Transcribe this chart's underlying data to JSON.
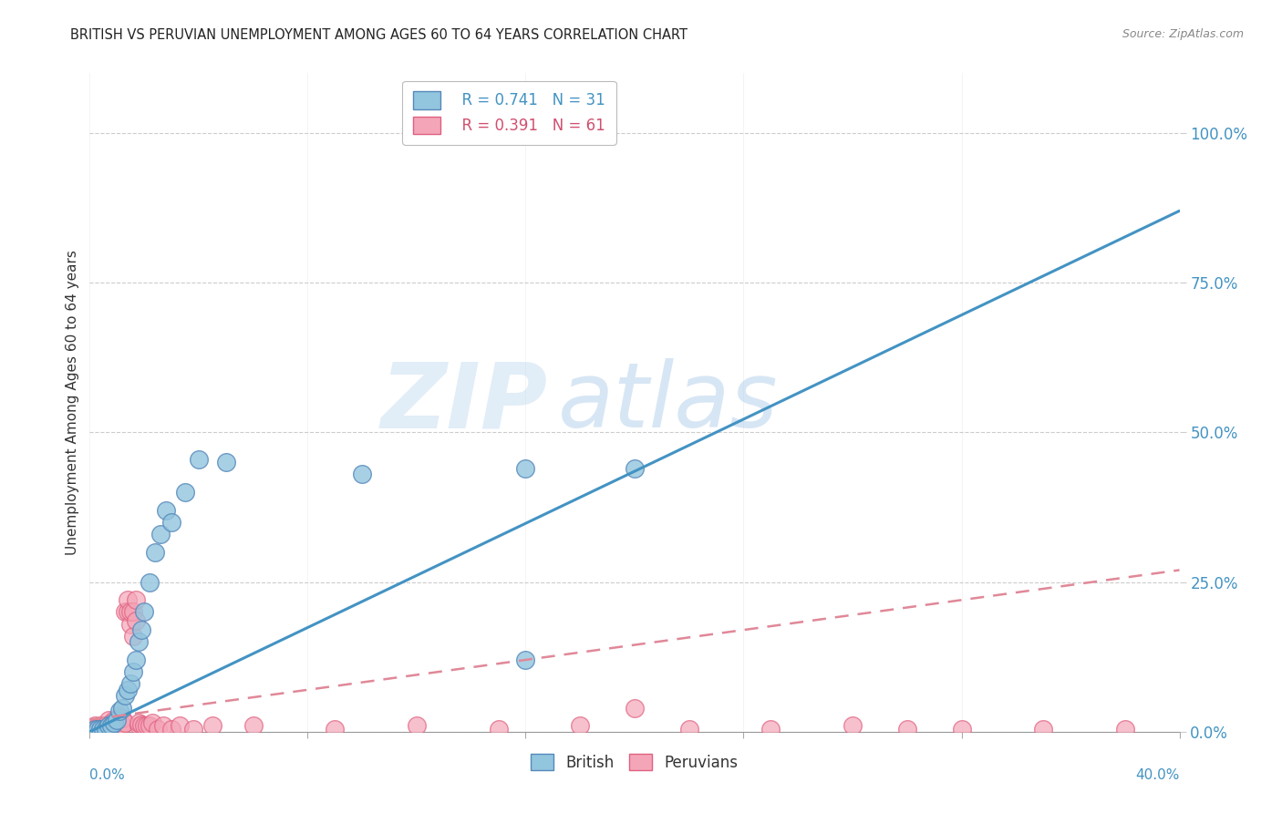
{
  "title": "BRITISH VS PERUVIAN UNEMPLOYMENT AMONG AGES 60 TO 64 YEARS CORRELATION CHART",
  "source": "Source: ZipAtlas.com",
  "ylabel": "Unemployment Among Ages 60 to 64 years",
  "xmin": 0.0,
  "xmax": 0.4,
  "ymin": 0.0,
  "ymax": 1.1,
  "right_yticks": [
    0.0,
    0.25,
    0.5,
    0.75,
    1.0
  ],
  "right_yticklabels": [
    "0.0%",
    "25.0%",
    "50.0%",
    "75.0%",
    "100.0%"
  ],
  "watermark_zip": "ZIP",
  "watermark_atlas": "atlas",
  "legend_blue_r": "R = 0.741",
  "legend_blue_n": "N = 31",
  "legend_pink_r": "R = 0.391",
  "legend_pink_n": "N = 61",
  "british_color": "#92c5de",
  "peruvian_color": "#f4a6b8",
  "blue_line_color": "#4393c3",
  "pink_line_color": "#d6604d",
  "blue_trend_x0": 0.0,
  "blue_trend_y0": 0.0,
  "blue_trend_x1": 0.4,
  "blue_trend_y1": 0.87,
  "pink_trend_x0": 0.0,
  "pink_trend_y0": 0.02,
  "pink_trend_x1": 0.4,
  "pink_trend_y1": 0.27,
  "british_x": [
    0.002,
    0.003,
    0.004,
    0.005,
    0.006,
    0.007,
    0.008,
    0.009,
    0.01,
    0.011,
    0.012,
    0.013,
    0.014,
    0.015,
    0.016,
    0.017,
    0.018,
    0.019,
    0.02,
    0.022,
    0.024,
    0.026,
    0.028,
    0.03,
    0.035,
    0.04,
    0.05,
    0.1,
    0.16,
    0.2,
    0.16
  ],
  "british_y": [
    0.005,
    0.005,
    0.005,
    0.005,
    0.005,
    0.01,
    0.01,
    0.015,
    0.02,
    0.035,
    0.04,
    0.06,
    0.07,
    0.08,
    0.1,
    0.12,
    0.15,
    0.17,
    0.2,
    0.25,
    0.3,
    0.33,
    0.37,
    0.35,
    0.4,
    0.455,
    0.45,
    0.43,
    0.44,
    0.44,
    0.12
  ],
  "peruvian_x": [
    0.001,
    0.002,
    0.002,
    0.003,
    0.003,
    0.004,
    0.004,
    0.005,
    0.005,
    0.005,
    0.006,
    0.006,
    0.007,
    0.007,
    0.007,
    0.008,
    0.008,
    0.009,
    0.009,
    0.01,
    0.01,
    0.011,
    0.011,
    0.012,
    0.012,
    0.013,
    0.013,
    0.014,
    0.014,
    0.015,
    0.015,
    0.016,
    0.016,
    0.017,
    0.017,
    0.018,
    0.018,
    0.019,
    0.02,
    0.021,
    0.022,
    0.023,
    0.025,
    0.027,
    0.03,
    0.033,
    0.038,
    0.045,
    0.06,
    0.09,
    0.12,
    0.15,
    0.18,
    0.2,
    0.22,
    0.25,
    0.28,
    0.3,
    0.32,
    0.35,
    0.38
  ],
  "peruvian_y": [
    0.005,
    0.005,
    0.01,
    0.005,
    0.008,
    0.005,
    0.01,
    0.005,
    0.008,
    0.01,
    0.005,
    0.01,
    0.005,
    0.01,
    0.02,
    0.008,
    0.015,
    0.01,
    0.02,
    0.01,
    0.02,
    0.01,
    0.025,
    0.01,
    0.022,
    0.015,
    0.2,
    0.2,
    0.22,
    0.18,
    0.2,
    0.16,
    0.2,
    0.22,
    0.185,
    0.01,
    0.015,
    0.012,
    0.01,
    0.01,
    0.01,
    0.015,
    0.005,
    0.01,
    0.005,
    0.01,
    0.005,
    0.01,
    0.01,
    0.005,
    0.01,
    0.005,
    0.01,
    0.04,
    0.005,
    0.005,
    0.01,
    0.005,
    0.005,
    0.005,
    0.005
  ]
}
